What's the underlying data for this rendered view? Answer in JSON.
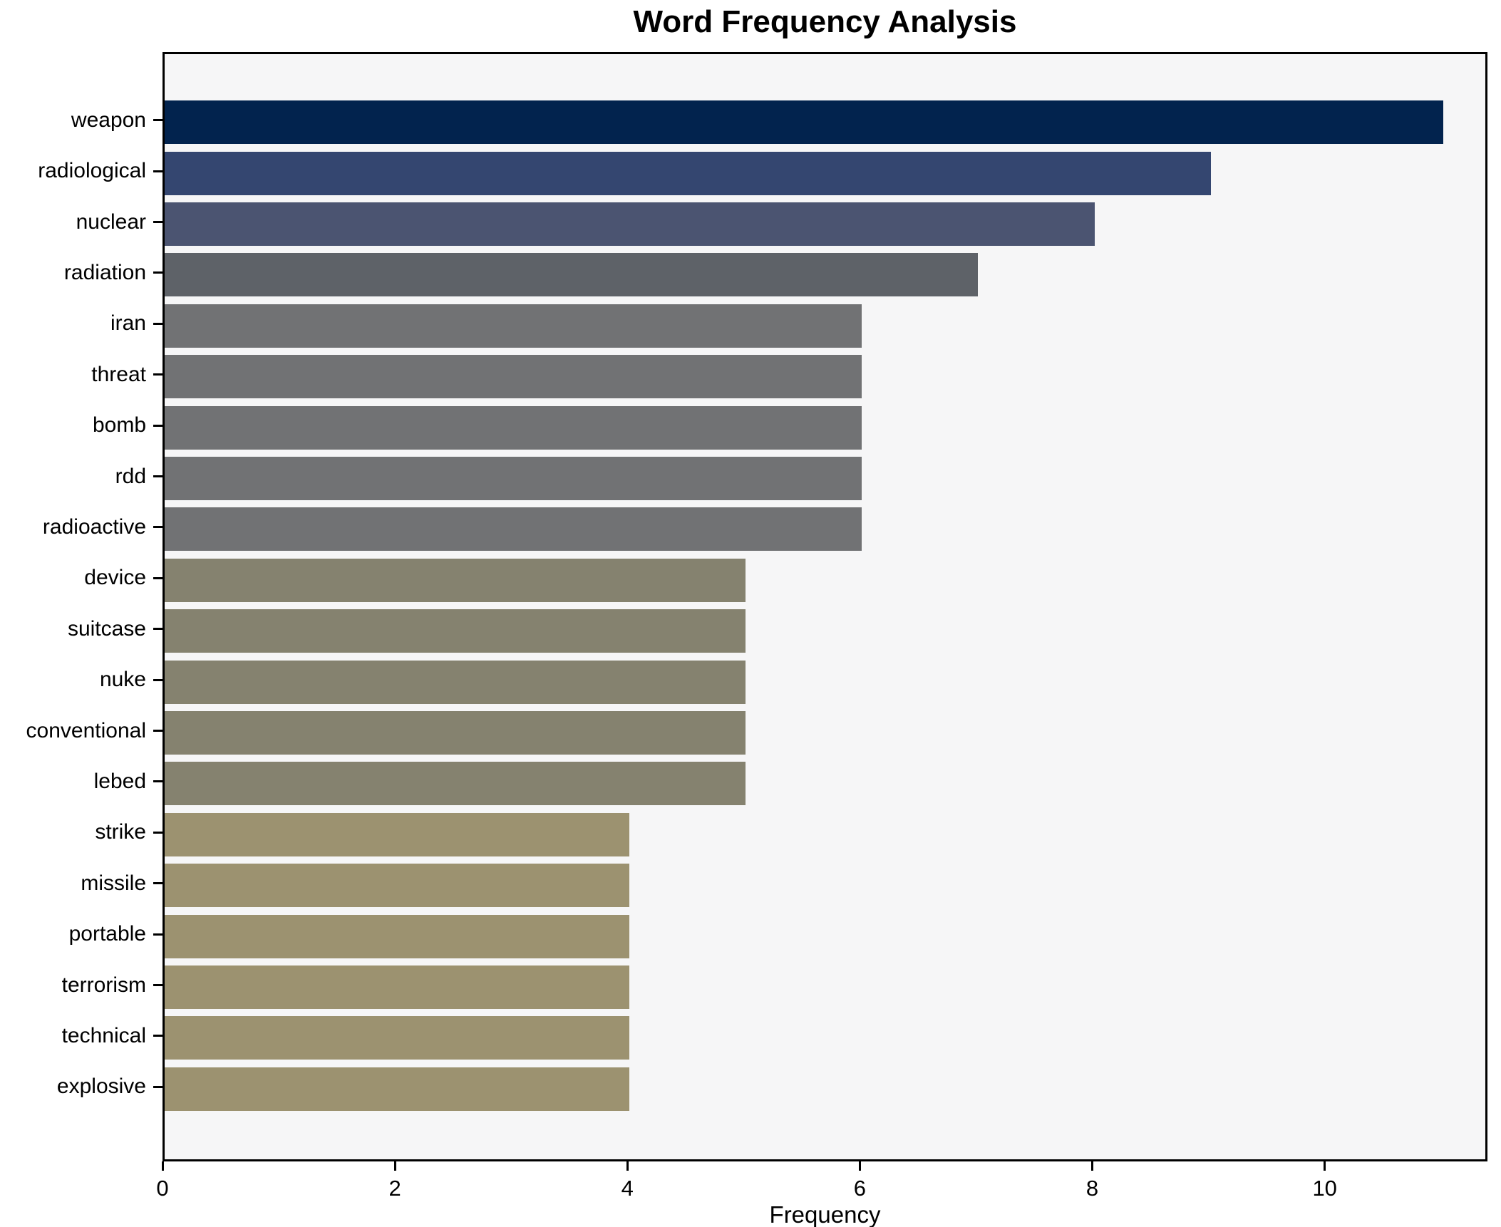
{
  "chart_data": {
    "type": "bar",
    "orientation": "horizontal",
    "title": "Word Frequency Analysis",
    "xlabel": "Frequency",
    "ylabel": "",
    "categories": [
      "weapon",
      "radiological",
      "nuclear",
      "radiation",
      "iran",
      "threat",
      "bomb",
      "rdd",
      "radioactive",
      "device",
      "suitcase",
      "nuke",
      "conventional",
      "lebed",
      "strike",
      "missile",
      "portable",
      "terrorism",
      "technical",
      "explosive"
    ],
    "values": [
      11,
      9,
      8,
      7,
      6,
      6,
      6,
      6,
      6,
      5,
      5,
      5,
      5,
      5,
      4,
      4,
      4,
      4,
      4,
      4
    ],
    "bar_colors": [
      "#02234e",
      "#344670",
      "#4b5471",
      "#5e6268",
      "#717274",
      "#717274",
      "#717274",
      "#717274",
      "#717274",
      "#85826f",
      "#85826f",
      "#85826f",
      "#85826f",
      "#85826f",
      "#9c9270",
      "#9c9270",
      "#9c9270",
      "#9c9270",
      "#9c9270",
      "#9c9270"
    ],
    "xlim": [
      0,
      11.4
    ],
    "xticks": [
      0,
      2,
      4,
      6,
      8,
      10
    ],
    "grid": false,
    "legend": null,
    "colors": {
      "figure_background": "#ffffff",
      "axes_background": "#f6f6f7",
      "spine": "#000000",
      "text": "#000000"
    }
  }
}
